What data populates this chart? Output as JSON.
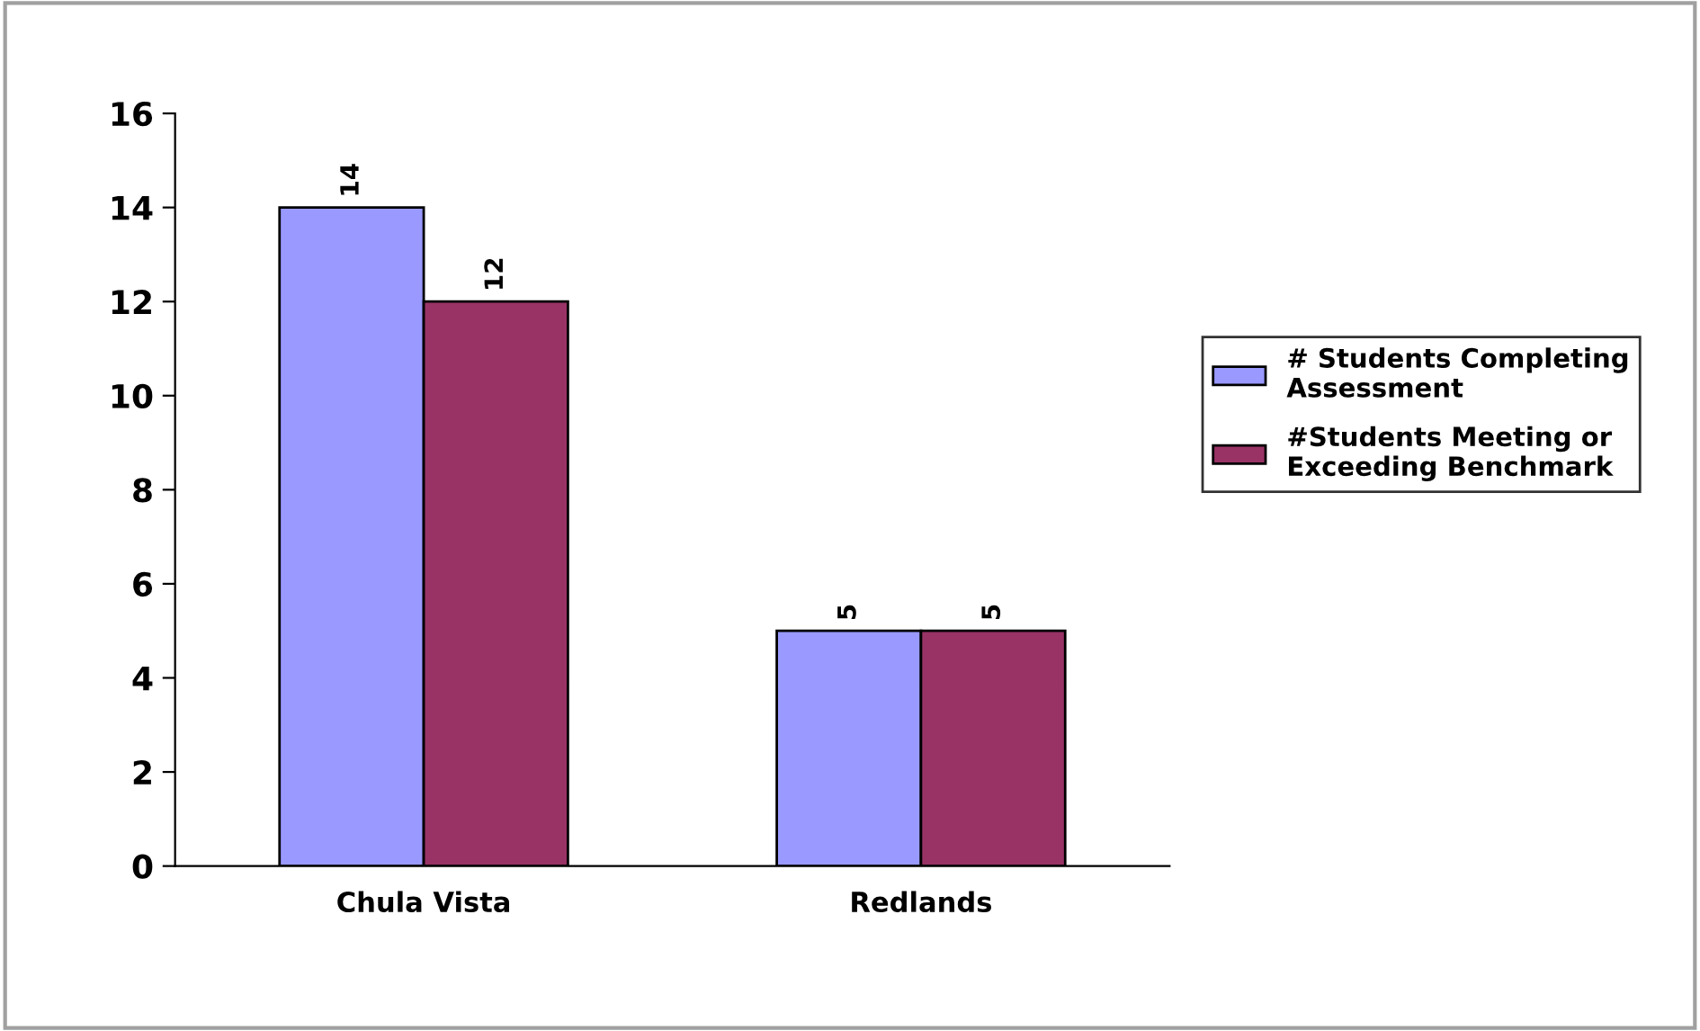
{
  "chart_data": {
    "type": "bar",
    "categories": [
      "Chula Vista",
      "Redlands"
    ],
    "series": [
      {
        "name": "# Students Completing Assessment",
        "color": "#9999ff",
        "values": [
          14,
          5
        ]
      },
      {
        "name": "#Students Meeting or Exceeding Benchmark",
        "color": "#993366",
        "values": [
          12,
          5
        ]
      }
    ],
    "ylim": [
      0,
      16
    ],
    "yticks": [
      0,
      2,
      4,
      6,
      8,
      10,
      12,
      14,
      16
    ],
    "grid": false,
    "legend": "right",
    "data_labels": true
  }
}
